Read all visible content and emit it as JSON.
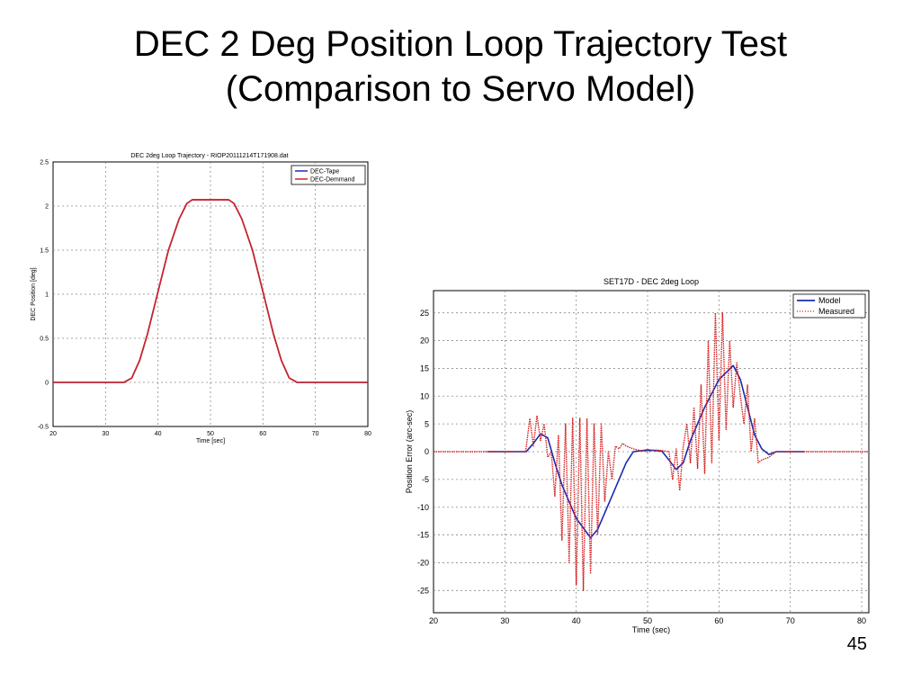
{
  "slide": {
    "title_line1": "DEC 2 Deg Position Loop Trajectory Test",
    "title_line2": "(Comparison to Servo Model)",
    "page_number": "45"
  },
  "colors": {
    "blue": "#1a2bb0",
    "red": "#d42020",
    "grid": "#8a8a8a"
  },
  "chart_data": [
    {
      "type": "line",
      "title": "DEC 2deg Loop Trajectory - RIOP20111214T171908.dat",
      "xlabel": "Time [sec]",
      "ylabel": "DEC Position [deg]",
      "xlim": [
        20,
        80
      ],
      "ylim": [
        -0.5,
        2.5
      ],
      "xticks": [
        20,
        30,
        40,
        50,
        60,
        70,
        80
      ],
      "yticks": [
        -0.5,
        0,
        0.5,
        1,
        1.5,
        2,
        2.5
      ],
      "legend_position": "top-right",
      "series": [
        {
          "name": "DEC-Tape",
          "color": "#1a2bb0",
          "x": [
            20,
            33.5,
            35,
            36.5,
            38,
            40,
            42,
            44,
            45.5,
            46.5,
            53.5,
            54.5,
            56,
            58,
            60,
            62,
            63.5,
            65,
            66.5,
            80
          ],
          "y": [
            0,
            0,
            0.05,
            0.25,
            0.55,
            1.03,
            1.5,
            1.85,
            2.03,
            2.07,
            2.07,
            2.03,
            1.85,
            1.5,
            1.03,
            0.55,
            0.25,
            0.05,
            0,
            0
          ]
        },
        {
          "name": "DEC-Demmand",
          "color": "#d42020",
          "x": [
            20,
            33.5,
            35,
            36.5,
            38,
            40,
            42,
            44,
            45.5,
            46.5,
            53.5,
            54.5,
            56,
            58,
            60,
            62,
            63.5,
            65,
            66.5,
            80
          ],
          "y": [
            0,
            0,
            0.05,
            0.25,
            0.55,
            1.03,
            1.5,
            1.85,
            2.03,
            2.07,
            2.07,
            2.03,
            1.85,
            1.5,
            1.03,
            0.55,
            0.25,
            0.05,
            0,
            0
          ]
        }
      ]
    },
    {
      "type": "line",
      "title": "SET17D - DEC 2deg Loop",
      "xlabel": "Time (sec)",
      "ylabel": "Position Error (arc-sec)",
      "xlim": [
        20,
        81
      ],
      "ylim": [
        -29,
        29
      ],
      "xticks": [
        20,
        30,
        40,
        50,
        60,
        70,
        80
      ],
      "yticks": [
        -25,
        -20,
        -15,
        -10,
        -5,
        0,
        5,
        10,
        15,
        20,
        25
      ],
      "legend_position": "top-right",
      "series": [
        {
          "name": "Model",
          "color": "#1a2bb0",
          "style": "solid",
          "x": [
            27.5,
            33,
            34,
            35,
            36,
            37,
            38,
            40,
            42,
            43,
            45,
            47,
            48,
            50,
            52,
            53,
            54,
            55,
            56,
            58,
            60,
            62,
            63,
            64,
            65,
            66,
            67,
            68,
            70,
            72
          ],
          "y": [
            0,
            0,
            1.5,
            3.2,
            2.5,
            -2,
            -6,
            -12,
            -15.5,
            -14,
            -8,
            -2,
            0,
            0.3,
            0.1,
            -1.5,
            -3.2,
            -2,
            2,
            8,
            13,
            15.5,
            13,
            8,
            3,
            0.5,
            -0.5,
            0,
            0,
            0
          ]
        },
        {
          "name": "Measured",
          "color": "#d42020",
          "style": "dotted",
          "x": [
            20,
            32.9,
            33.5,
            34,
            34.5,
            35,
            35.5,
            36,
            36.5,
            37,
            37.5,
            38,
            38.5,
            39,
            39.5,
            40,
            40.5,
            41,
            41.5,
            42,
            42.5,
            43,
            43.5,
            44,
            44.5,
            45,
            45.5,
            46,
            46.5,
            47,
            48,
            49,
            50,
            51,
            52,
            53,
            53.5,
            54,
            54.5,
            55,
            55.5,
            56,
            56.5,
            57,
            57.5,
            58,
            58.5,
            59,
            59.5,
            60,
            60.5,
            61,
            61.5,
            62,
            62.5,
            63,
            63.5,
            64,
            64.5,
            65,
            65.5,
            66,
            67,
            68,
            69,
            70,
            81
          ],
          "y": [
            0,
            0,
            6,
            1,
            6.5,
            2,
            5,
            -1,
            0,
            -8,
            3,
            -16,
            5,
            -20,
            6,
            -24,
            6,
            -25,
            6,
            -22,
            5,
            -15,
            5,
            -9,
            0,
            -5,
            1,
            0.5,
            1.5,
            1,
            0.5,
            0.2,
            0,
            0.3,
            0.2,
            0,
            -5,
            0.5,
            -7,
            1,
            5,
            -2,
            8,
            -3,
            12,
            -4,
            20,
            -2,
            25,
            2,
            25,
            4,
            20,
            8,
            16,
            10,
            5,
            12,
            0,
            6,
            -2,
            -1.5,
            -1,
            0,
            0,
            0,
            0
          ]
        }
      ]
    }
  ]
}
